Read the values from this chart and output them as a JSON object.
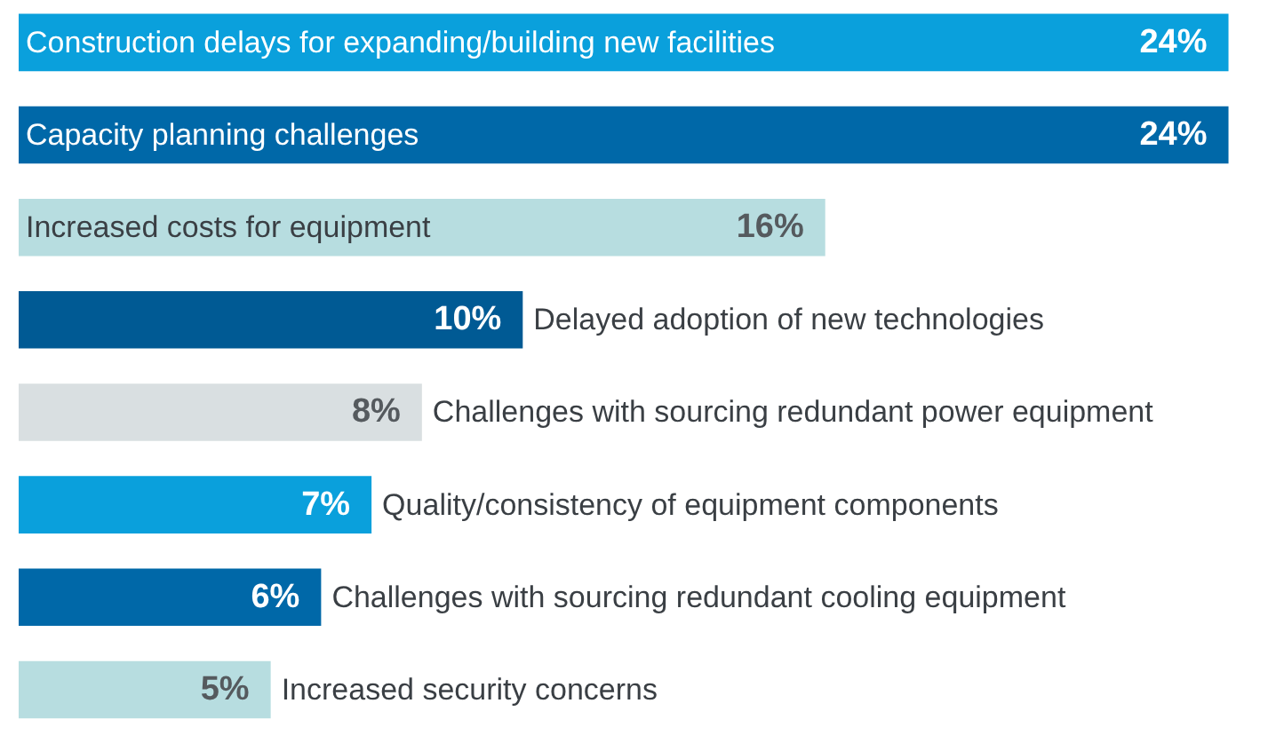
{
  "chart_data": {
    "type": "bar",
    "orientation": "horizontal",
    "categories": [
      "Construction delays for expanding/building new facilities",
      "Capacity planning challenges",
      "Increased costs for equipment",
      "Delayed adoption of new technologies",
      "Challenges with sourcing redundant power equipment",
      "Quality/consistency of equipment components",
      "Challenges with sourcing redundant cooling equipment",
      "Increased security concerns"
    ],
    "values": [
      24,
      24,
      16,
      10,
      8,
      7,
      6,
      5
    ],
    "colors": [
      "#0aa0dc",
      "#0068a8",
      "#b7dde0",
      "#005a94",
      "#d9dfe1",
      "#0aa0dc",
      "#0068a8",
      "#b7dde0"
    ],
    "value_labels": [
      "24%",
      "24%",
      "16%",
      "10%",
      "8%",
      "7%",
      "6%",
      "5%"
    ]
  }
}
